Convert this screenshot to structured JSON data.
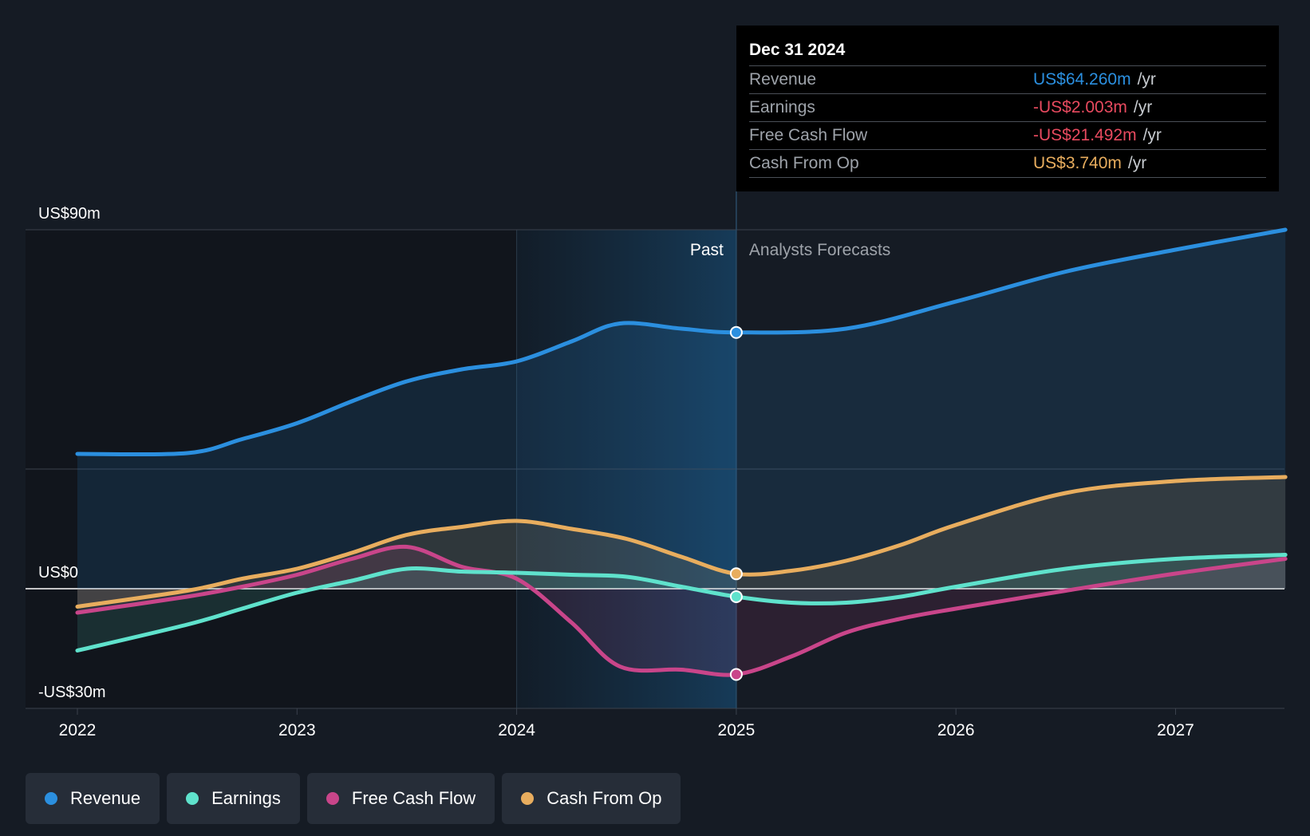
{
  "chart_data": {
    "type": "area",
    "x_ticks": [
      "2022",
      "2023",
      "2024",
      "2025",
      "2026",
      "2027"
    ],
    "x_range": [
      2021.76,
      2027.5
    ],
    "y_ticks": [
      {
        "value": 90,
        "label": "US$90m"
      },
      {
        "value": 0,
        "label": "US$0"
      },
      {
        "value": -30,
        "label": "-US$30m"
      }
    ],
    "ylim": [
      -30,
      90
    ],
    "past_label": "Past",
    "forecast_label": "Analysts Forecasts",
    "divider_x": 2025.0,
    "highlight_start_x": 2024.0,
    "series": [
      {
        "name": "Revenue",
        "color": "#2b8fdf",
        "points": [
          [
            2022.0,
            33.8
          ],
          [
            2022.5,
            34.0
          ],
          [
            2022.75,
            37.5
          ],
          [
            2023.0,
            41.5
          ],
          [
            2023.25,
            47.0
          ],
          [
            2023.5,
            52.0
          ],
          [
            2023.75,
            55.0
          ],
          [
            2024.0,
            57.0
          ],
          [
            2024.25,
            62.0
          ],
          [
            2024.47,
            66.5
          ],
          [
            2024.75,
            65.2
          ],
          [
            2025.0,
            64.26
          ],
          [
            2025.5,
            65.2
          ],
          [
            2026.0,
            72.0
          ],
          [
            2026.5,
            79.5
          ],
          [
            2027.0,
            85.0
          ],
          [
            2027.5,
            90.0
          ]
        ]
      },
      {
        "name": "Earnings",
        "color": "#5fe2cc",
        "points": [
          [
            2022.0,
            -15.5
          ],
          [
            2022.5,
            -9.0
          ],
          [
            2022.75,
            -5.0
          ],
          [
            2023.0,
            -1.0
          ],
          [
            2023.25,
            2.0
          ],
          [
            2023.5,
            5.0
          ],
          [
            2023.75,
            4.3
          ],
          [
            2024.0,
            4.0
          ],
          [
            2024.25,
            3.5
          ],
          [
            2024.5,
            3.0
          ],
          [
            2024.75,
            0.5
          ],
          [
            2025.0,
            -2.003
          ],
          [
            2025.25,
            -3.5
          ],
          [
            2025.5,
            -3.5
          ],
          [
            2025.75,
            -2.0
          ],
          [
            2026.0,
            0.5
          ],
          [
            2026.5,
            5.0
          ],
          [
            2027.0,
            7.5
          ],
          [
            2027.5,
            8.5
          ]
        ]
      },
      {
        "name": "Free Cash Flow",
        "color": "#c9458a",
        "points": [
          [
            2022.0,
            -6.0
          ],
          [
            2022.5,
            -2.0
          ],
          [
            2022.75,
            0.5
          ],
          [
            2023.0,
            3.5
          ],
          [
            2023.25,
            7.5
          ],
          [
            2023.5,
            10.5
          ],
          [
            2023.75,
            5.5
          ],
          [
            2024.0,
            2.5
          ],
          [
            2024.25,
            -8.5
          ],
          [
            2024.47,
            -19.5
          ],
          [
            2024.75,
            -20.3
          ],
          [
            2025.0,
            -21.492
          ],
          [
            2025.25,
            -17.0
          ],
          [
            2025.5,
            -11.0
          ],
          [
            2025.75,
            -7.5
          ],
          [
            2026.0,
            -5.0
          ],
          [
            2026.5,
            -0.5
          ],
          [
            2027.0,
            3.8
          ],
          [
            2027.5,
            7.5
          ]
        ]
      },
      {
        "name": "Cash From Op",
        "color": "#e8ad5e",
        "points": [
          [
            2022.0,
            -4.5
          ],
          [
            2022.5,
            -0.5
          ],
          [
            2022.75,
            2.5
          ],
          [
            2023.0,
            5.0
          ],
          [
            2023.25,
            9.0
          ],
          [
            2023.5,
            13.5
          ],
          [
            2023.75,
            15.5
          ],
          [
            2024.0,
            17.0
          ],
          [
            2024.25,
            15.0
          ],
          [
            2024.5,
            12.5
          ],
          [
            2024.75,
            8.0
          ],
          [
            2025.0,
            3.74
          ],
          [
            2025.25,
            4.5
          ],
          [
            2025.5,
            7.0
          ],
          [
            2025.75,
            11.0
          ],
          [
            2026.0,
            16.0
          ],
          [
            2026.5,
            24.0
          ],
          [
            2027.0,
            27.0
          ],
          [
            2027.5,
            28.0
          ]
        ]
      }
    ],
    "highlight": {
      "x": 2025.0,
      "label": "Dec 31 2024"
    }
  },
  "tooltip": {
    "date": "Dec 31 2024",
    "rows": [
      {
        "label": "Revenue",
        "value": "US$64.260m",
        "unit": "/yr",
        "color": "#2b8fdf"
      },
      {
        "label": "Earnings",
        "value": "-US$2.003m",
        "unit": "/yr",
        "color": "#e84a5f"
      },
      {
        "label": "Free Cash Flow",
        "value": "-US$21.492m",
        "unit": "/yr",
        "color": "#e84a5f"
      },
      {
        "label": "Cash From Op",
        "value": "US$3.740m",
        "unit": "/yr",
        "color": "#e8ad5e"
      }
    ]
  },
  "legend": [
    {
      "label": "Revenue",
      "color": "#2b8fdf"
    },
    {
      "label": "Earnings",
      "color": "#5fe2cc"
    },
    {
      "label": "Free Cash Flow",
      "color": "#c9458a"
    },
    {
      "label": "Cash From Op",
      "color": "#e8ad5e"
    }
  ]
}
